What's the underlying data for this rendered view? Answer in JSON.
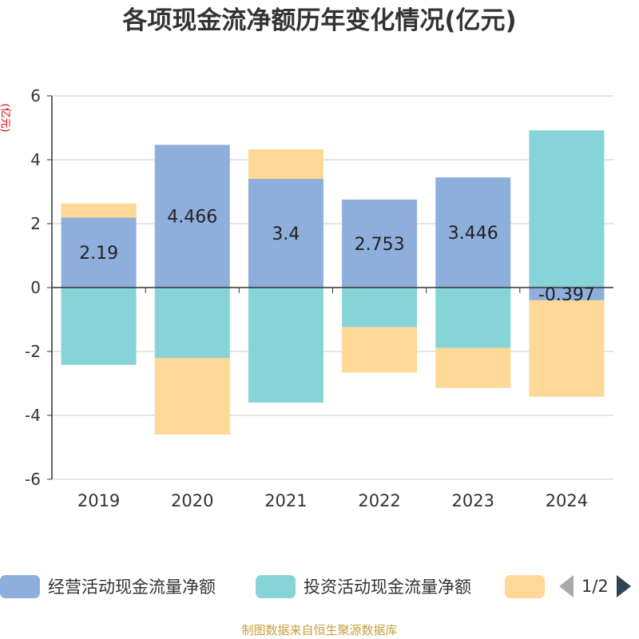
{
  "title": "各项现金流净额历年变化情况(亿元)",
  "y_unit": "(亿元)",
  "footer": "制图数据来自恒生聚源数据库",
  "pager": {
    "text": "1/2"
  },
  "colors": {
    "operating": "#8eaedb",
    "investing": "#86d4d8",
    "financing": "#fed896",
    "axis": "#333333",
    "grid": "#cccccc"
  },
  "legend": [
    {
      "name": "经营活动现金流量净额",
      "color": "#8eaedb"
    },
    {
      "name": "投资活动现金流量净额",
      "color": "#86d4d8"
    },
    {
      "name": "",
      "color": "#fed896"
    }
  ],
  "chart_data": {
    "type": "bar",
    "stacked": true,
    "categories": [
      "2019",
      "2020",
      "2021",
      "2022",
      "2023",
      "2024"
    ],
    "ylim": [
      -6,
      6
    ],
    "yticks": [
      6,
      4,
      2,
      0,
      -2,
      -4,
      -6
    ],
    "grid": true,
    "legend_position": "bottom",
    "series": [
      {
        "name": "经营活动现金流量净额",
        "values": [
          2.19,
          4.466,
          3.4,
          2.753,
          3.446,
          -0.397
        ],
        "labels": [
          "2.19",
          "4.466",
          "3.4",
          "2.753",
          "3.446",
          "-0.397"
        ]
      },
      {
        "name": "投资活动现金流量净额",
        "values": [
          -2.42,
          -2.2,
          -3.6,
          -1.24,
          -1.89,
          4.92
        ]
      },
      {
        "values": [
          0.44,
          -2.4,
          0.93,
          -1.42,
          -1.25,
          -3.02
        ]
      }
    ]
  }
}
